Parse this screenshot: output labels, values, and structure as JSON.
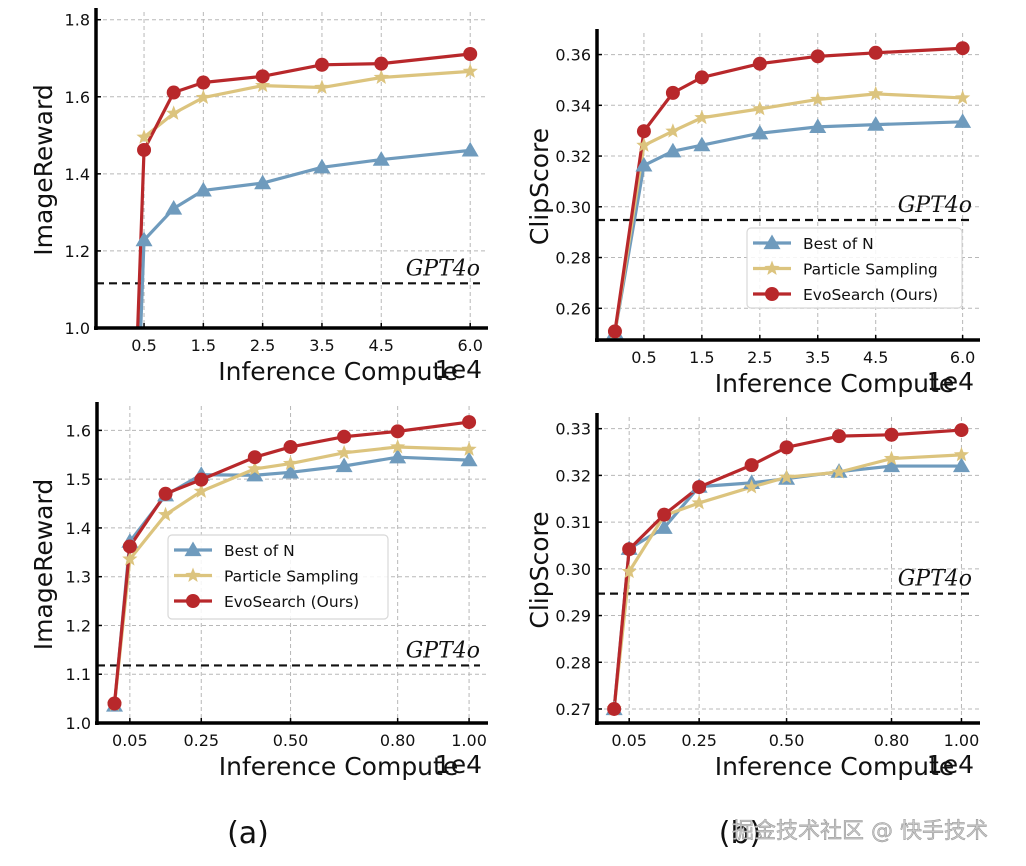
{
  "chart_data": [
    {
      "id": "top-left",
      "type": "line",
      "title": "",
      "xlabel": "Inference Compute",
      "x_offset_label": "1e4",
      "ylabel": "ImageReward",
      "xlim": [
        -0.31,
        6.3
      ],
      "ylim": [
        1.0,
        1.82
      ],
      "x_ticks": [
        0.5,
        1.5,
        2.5,
        3.5,
        4.5,
        6.0
      ],
      "x_tick_labels": [
        "0.5",
        "1.5",
        "2.5",
        "3.5",
        "4.5",
        "6.0"
      ],
      "y_ticks": [
        1.0,
        1.2,
        1.4,
        1.6,
        1.8
      ],
      "y_tick_labels": [
        "1.0",
        "1.2",
        "1.4",
        "1.6",
        "1.8"
      ],
      "grid": true,
      "legend": null,
      "reference_line": {
        "label": "GPT4o",
        "value": 1.116
      },
      "series": [
        {
          "name": "Best of N",
          "marker": "triangle",
          "color": "#6f9bbd",
          "x": [
            0.42,
            0.5,
            1.0,
            1.5,
            2.5,
            3.5,
            4.5,
            6.0
          ],
          "values": [
            0.9,
            1.228,
            1.31,
            1.357,
            1.376,
            1.417,
            1.437,
            1.461
          ]
        },
        {
          "name": "Particle Sampling",
          "marker": "star",
          "color": "#dcc47e",
          "x": [
            0.5,
            1.0,
            1.5,
            2.5,
            3.5,
            4.5,
            6.0
          ],
          "values": [
            1.495,
            1.557,
            1.598,
            1.629,
            1.624,
            1.65,
            1.666
          ]
        },
        {
          "name": "EvoSearch (Ours)",
          "marker": "circle",
          "color": "#b8282b",
          "x": [
            0.37,
            0.5,
            1.0,
            1.5,
            2.5,
            3.5,
            4.5,
            6.0
          ],
          "values": [
            0.9,
            1.462,
            1.611,
            1.637,
            1.653,
            1.683,
            1.686,
            1.711
          ]
        }
      ]
    },
    {
      "id": "top-right",
      "type": "line",
      "title": "",
      "xlabel": "Inference Compute",
      "x_offset_label": "1e4",
      "ylabel": "ClipScore",
      "xlim": [
        -0.31,
        6.3
      ],
      "ylim": [
        0.2475,
        0.3685
      ],
      "x_ticks": [
        0.5,
        1.5,
        2.5,
        3.5,
        4.5,
        6.0
      ],
      "x_tick_labels": [
        "0.5",
        "1.5",
        "2.5",
        "3.5",
        "4.5",
        "6.0"
      ],
      "y_ticks": [
        0.26,
        0.28,
        0.3,
        0.32,
        0.34,
        0.36
      ],
      "y_tick_labels": [
        "0.26",
        "0.28",
        "0.30",
        "0.32",
        "0.34",
        "0.36"
      ],
      "grid": true,
      "legend": "lower-right",
      "reference_line": {
        "label": "GPT4o",
        "value": 0.2948
      },
      "series": [
        {
          "name": "Best of N",
          "marker": "triangle",
          "color": "#6f9bbd",
          "x": [
            0.0,
            0.5,
            1.0,
            1.5,
            2.5,
            3.5,
            4.5,
            6.0
          ],
          "values": [
            0.2505,
            0.3163,
            0.3219,
            0.3243,
            0.329,
            0.3315,
            0.3324,
            0.3335
          ]
        },
        {
          "name": "Particle Sampling",
          "marker": "star",
          "color": "#dcc47e",
          "x": [
            0.0,
            0.5,
            1.0,
            1.5,
            2.5,
            3.5,
            4.5,
            6.0
          ],
          "values": [
            0.2505,
            0.3242,
            0.3298,
            0.3351,
            0.3386,
            0.3423,
            0.3445,
            0.3429
          ]
        },
        {
          "name": "EvoSearch (Ours)",
          "marker": "circle",
          "color": "#b8282b",
          "x": [
            0.0,
            0.5,
            1.0,
            1.5,
            2.5,
            3.5,
            4.5,
            6.0
          ],
          "values": [
            0.2509,
            0.3298,
            0.3449,
            0.351,
            0.3564,
            0.3593,
            0.3607,
            0.3625
          ]
        }
      ]
    },
    {
      "id": "bottom-left",
      "type": "line",
      "title": "",
      "xlabel": "Inference Compute",
      "x_offset_label": "1e4",
      "ylabel": "ImageReward",
      "xlim": [
        -0.042,
        1.053
      ],
      "ylim": [
        1.0,
        1.65
      ],
      "x_ticks": [
        0.05,
        0.25,
        0.5,
        0.8,
        1.0
      ],
      "x_tick_labels": [
        "0.05",
        "0.25",
        "0.50",
        "0.80",
        "1.00"
      ],
      "y_ticks": [
        1.0,
        1.1,
        1.2,
        1.3,
        1.4,
        1.5,
        1.6
      ],
      "y_tick_labels": [
        "1.0",
        "1.1",
        "1.2",
        "1.3",
        "1.4",
        "1.5",
        "1.6"
      ],
      "grid": true,
      "legend": "center",
      "reference_line": {
        "label": "GPT4o",
        "value": 1.118
      },
      "series": [
        {
          "name": "Best of N",
          "marker": "triangle",
          "color": "#6f9bbd",
          "x": [
            0.007,
            0.05,
            0.15,
            0.25,
            0.4,
            0.5,
            0.65,
            0.8,
            1.0
          ],
          "values": [
            1.036,
            1.372,
            1.467,
            1.509,
            1.508,
            1.514,
            1.527,
            1.545,
            1.539
          ]
        },
        {
          "name": "Particle Sampling",
          "marker": "star",
          "color": "#dcc47e",
          "x": [
            0.007,
            0.05,
            0.15,
            0.25,
            0.4,
            0.5,
            0.65,
            0.8,
            1.0
          ],
          "values": [
            1.038,
            1.336,
            1.427,
            1.475,
            1.521,
            1.532,
            1.554,
            1.566,
            1.561
          ]
        },
        {
          "name": "EvoSearch (Ours)",
          "marker": "circle",
          "color": "#b8282b",
          "x": [
            0.007,
            0.05,
            0.15,
            0.25,
            0.4,
            0.5,
            0.65,
            0.8,
            1.0
          ],
          "values": [
            1.04,
            1.362,
            1.47,
            1.499,
            1.545,
            1.566,
            1.587,
            1.598,
            1.617
          ]
        }
      ]
    },
    {
      "id": "bottom-right",
      "type": "line",
      "title": "",
      "xlabel": "Inference Compute",
      "x_offset_label": "1e4",
      "ylabel": "ClipScore",
      "xlim": [
        -0.042,
        1.053
      ],
      "ylim": [
        0.267,
        0.3325
      ],
      "x_ticks": [
        0.05,
        0.25,
        0.5,
        0.8,
        1.0
      ],
      "x_tick_labels": [
        "0.05",
        "0.25",
        "0.50",
        "0.80",
        "1.00"
      ],
      "y_ticks": [
        0.27,
        0.28,
        0.29,
        0.3,
        0.31,
        0.32,
        0.33
      ],
      "y_tick_labels": [
        "0.27",
        "0.28",
        "0.29",
        "0.30",
        "0.31",
        "0.32",
        "0.33"
      ],
      "grid": true,
      "legend": null,
      "reference_line": {
        "label": "GPT4o",
        "value": 0.2947
      },
      "series": [
        {
          "name": "Best of N",
          "marker": "triangle",
          "color": "#6f9bbd",
          "x": [
            0.007,
            0.05,
            0.15,
            0.25,
            0.4,
            0.5,
            0.65,
            0.8,
            1.0
          ],
          "values": [
            0.27,
            0.3043,
            0.3088,
            0.3176,
            0.3184,
            0.3193,
            0.3208,
            0.322,
            0.322
          ]
        },
        {
          "name": "Particle Sampling",
          "marker": "star",
          "color": "#dcc47e",
          "x": [
            0.007,
            0.05,
            0.15,
            0.25,
            0.4,
            0.5,
            0.65,
            0.8,
            1.0
          ],
          "values": [
            0.27,
            0.2994,
            0.3114,
            0.3141,
            0.3175,
            0.3196,
            0.3207,
            0.3236,
            0.3244
          ]
        },
        {
          "name": "EvoSearch (Ours)",
          "marker": "circle",
          "color": "#b8282b",
          "x": [
            0.007,
            0.05,
            0.15,
            0.25,
            0.4,
            0.5,
            0.65,
            0.8,
            1.0
          ],
          "values": [
            0.27,
            0.3042,
            0.3116,
            0.3175,
            0.3222,
            0.326,
            0.3284,
            0.3287,
            0.3297
          ]
        }
      ]
    }
  ],
  "captions": {
    "left": "(a)",
    "right": "(b)"
  },
  "watermark": "掘金技术社区 @ 快手技术"
}
